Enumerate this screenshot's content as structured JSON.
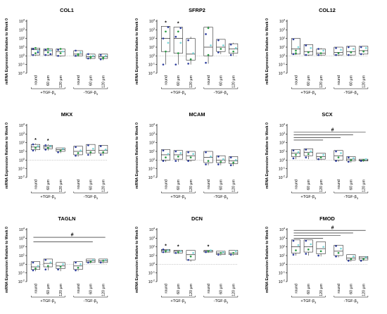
{
  "figure": {
    "ylabel": "mRNA Expression Relative to Week 0",
    "y_ticks": [
      {
        "base": "10",
        "exp": "4"
      },
      {
        "base": "10",
        "exp": "3"
      },
      {
        "base": "10",
        "exp": "2"
      },
      {
        "base": "10",
        "exp": "1"
      },
      {
        "base": "10",
        "exp": "0"
      },
      {
        "base": "10",
        "exp": "-1"
      },
      {
        "base": "10",
        "exp": "-2"
      }
    ],
    "categories": [
      "round",
      "60 μm",
      "120 μm",
      "round",
      "60 μm",
      "120 μm"
    ],
    "groups": [
      "+TGF-β",
      "-TGF-β"
    ],
    "group_subscript": "3",
    "colors": {
      "blue": "#2f3f9e",
      "green": "#2c9c46",
      "cyan": "#7dd7d9",
      "ref": "#999999"
    }
  },
  "chart_data": [
    {
      "type": "box",
      "title": "COL1",
      "ylim_log10": [
        -2,
        4
      ],
      "y_scale": "log",
      "series": [
        {
          "category": "round",
          "group": "+TGF-β3",
          "min": 0.0,
          "q1": 0.1,
          "median": 0.7,
          "q3": 0.9,
          "max": 0.9,
          "points": [
            0.1,
            0.3,
            0.6,
            0.8,
            0.9,
            0.4
          ]
        },
        {
          "category": "60 μm",
          "group": "+TGF-β3",
          "min": 0.0,
          "q1": 0.1,
          "median": 0.6,
          "q3": 0.8,
          "max": 0.8,
          "points": [
            0.1,
            0.4,
            0.6,
            0.7,
            0.8,
            0.2
          ]
        },
        {
          "category": "120 μm",
          "group": "+TGF-β3",
          "min": -0.1,
          "q1": 0.0,
          "median": 0.5,
          "q3": 0.8,
          "max": 0.8,
          "points": [
            0.0,
            0.3,
            0.5,
            0.7,
            0.8
          ]
        },
        {
          "category": "round",
          "group": "-TGF-β3",
          "min": -0.1,
          "q1": 0.0,
          "median": 0.2,
          "q3": 0.6,
          "max": 0.6,
          "points": [
            0.0,
            0.2,
            0.4,
            0.6,
            0.1
          ]
        },
        {
          "category": "60 μm",
          "group": "-TGF-β3",
          "min": -0.4,
          "q1": -0.3,
          "median": -0.1,
          "q3": 0.2,
          "max": 0.2,
          "points": [
            -0.3,
            -0.1,
            0.0,
            0.2,
            -0.2
          ]
        },
        {
          "category": "120 μm",
          "group": "-TGF-β3",
          "min": -0.5,
          "q1": -0.3,
          "median": -0.1,
          "q3": 0.2,
          "max": 0.2,
          "points": [
            -0.4,
            -0.2,
            0.0,
            0.1,
            -0.3
          ]
        }
      ],
      "annotations": []
    },
    {
      "type": "box",
      "title": "SFRP2",
      "ylim_log10": [
        -2,
        4
      ],
      "y_scale": "log",
      "series": [
        {
          "category": "round",
          "group": "+TGF-β3",
          "min": -1.0,
          "q1": 0.5,
          "median": 2.0,
          "q3": 3.4,
          "max": 3.4,
          "points": [
            -1.0,
            0.5,
            1.5,
            2.0,
            2.8,
            3.3
          ]
        },
        {
          "category": "60 μm",
          "group": "+TGF-β3",
          "min": -1.0,
          "q1": 0.3,
          "median": 2.0,
          "q3": 3.3,
          "max": 3.3,
          "points": [
            -1.0,
            0.3,
            1.5,
            2.2,
            2.8,
            3.2
          ]
        },
        {
          "category": "120 μm",
          "group": "+TGF-β3",
          "min": -1.0,
          "q1": -0.5,
          "median": 0.2,
          "q3": 2.0,
          "max": 2.2,
          "points": [
            -0.9,
            -0.4,
            0.3,
            1.8
          ]
        },
        {
          "category": "round",
          "group": "-TGF-β3",
          "min": -0.9,
          "q1": 0.0,
          "median": 1.0,
          "q3": 3.3,
          "max": 3.4,
          "points": [
            -0.8,
            0.1,
            1.2,
            2.5,
            3.2
          ]
        },
        {
          "category": "60 μm",
          "group": "-TGF-β3",
          "min": 0.2,
          "q1": 0.5,
          "median": 1.0,
          "q3": 1.9,
          "max": 1.9,
          "points": [
            0.4,
            0.8,
            1.2,
            1.8
          ]
        },
        {
          "category": "120 μm",
          "group": "-TGF-β3",
          "min": 0.0,
          "q1": 0.3,
          "median": 0.8,
          "q3": 1.4,
          "max": 1.5,
          "points": [
            0.1,
            0.5,
            0.9,
            1.3
          ]
        }
      ],
      "annotations": [
        {
          "type": "star",
          "text": "*",
          "category": "round"
        },
        {
          "type": "star",
          "text": "*",
          "category": "60 μm"
        }
      ]
    },
    {
      "type": "box",
      "title": "COL12",
      "ylim_log10": [
        -2,
        4
      ],
      "y_scale": "log",
      "series": [
        {
          "category": "round",
          "group": "+TGF-β3",
          "min": 0.1,
          "q1": 0.2,
          "median": 0.8,
          "q3": 2.0,
          "max": 2.0,
          "points": [
            0.2,
            0.6,
            1.0,
            1.9,
            0.3
          ]
        },
        {
          "category": "60 μm",
          "group": "+TGF-β3",
          "min": 0.0,
          "q1": 0.1,
          "median": 0.5,
          "q3": 1.3,
          "max": 1.3,
          "points": [
            0.1,
            0.4,
            0.9,
            1.2
          ]
        },
        {
          "category": "120 μm",
          "group": "+TGF-β3",
          "min": 0.0,
          "q1": 0.1,
          "median": 0.3,
          "q3": 0.8,
          "max": 0.9,
          "points": [
            0.1,
            0.3,
            0.6,
            0.8
          ]
        },
        {
          "category": "round",
          "group": "-TGF-β3",
          "min": 0.0,
          "q1": 0.1,
          "median": 0.4,
          "q3": 1.0,
          "max": 1.0,
          "points": [
            0.1,
            0.3,
            0.7,
            0.9
          ]
        },
        {
          "category": "60 μm",
          "group": "-TGF-β3",
          "min": 0.0,
          "q1": 0.1,
          "median": 0.5,
          "q3": 1.1,
          "max": 1.1,
          "points": [
            0.1,
            0.4,
            0.8,
            1.0
          ]
        },
        {
          "category": "120 μm",
          "group": "-TGF-β3",
          "min": 0.1,
          "q1": 0.2,
          "median": 0.6,
          "q3": 1.1,
          "max": 1.1,
          "points": [
            0.2,
            0.5,
            0.9,
            1.0
          ]
        }
      ],
      "annotations": []
    },
    {
      "type": "box",
      "title": "MKX",
      "ylim_log10": [
        -2,
        4
      ],
      "y_scale": "log",
      "series": [
        {
          "category": "round",
          "group": "+TGF-β3",
          "min": 1.0,
          "q1": 1.2,
          "median": 1.5,
          "q3": 1.8,
          "max": 1.9,
          "points": [
            1.1,
            1.4,
            1.6,
            1.8
          ]
        },
        {
          "category": "60 μm",
          "group": "+TGF-β3",
          "min": 1.1,
          "q1": 1.3,
          "median": 1.5,
          "q3": 1.7,
          "max": 1.8,
          "points": [
            1.2,
            1.4,
            1.6,
            1.7
          ]
        },
        {
          "category": "120 μm",
          "group": "+TGF-β3",
          "min": 0.8,
          "q1": 1.0,
          "median": 1.2,
          "q3": 1.4,
          "max": 1.4,
          "points": [
            0.9,
            1.1,
            1.3
          ]
        },
        {
          "category": "round",
          "group": "-TGF-β3",
          "min": 0.4,
          "q1": 0.6,
          "median": 1.0,
          "q3": 1.6,
          "max": 1.6,
          "points": [
            0.5,
            0.8,
            1.1,
            1.5
          ]
        },
        {
          "category": "60 μm",
          "group": "-TGF-β3",
          "min": 0.5,
          "q1": 0.8,
          "median": 1.1,
          "q3": 1.8,
          "max": 1.8,
          "points": [
            0.6,
            0.9,
            1.3,
            1.7
          ]
        },
        {
          "category": "120 μm",
          "group": "-TGF-β3",
          "min": 0.5,
          "q1": 0.8,
          "median": 1.1,
          "q3": 1.7,
          "max": 1.7,
          "points": [
            0.6,
            0.9,
            1.2,
            1.6
          ]
        }
      ],
      "annotations": [
        {
          "type": "star",
          "text": "*",
          "category": "round"
        },
        {
          "type": "star",
          "text": "*",
          "category": "60 μm"
        }
      ]
    },
    {
      "type": "box",
      "title": "MCAM",
      "ylim_log10": [
        -2,
        4
      ],
      "y_scale": "log",
      "series": [
        {
          "category": "round",
          "group": "+TGF-β3",
          "min": -0.2,
          "q1": 0.0,
          "median": 0.6,
          "q3": 1.2,
          "max": 1.2,
          "points": [
            -0.1,
            0.3,
            0.7,
            1.1
          ]
        },
        {
          "category": "60 μm",
          "group": "+TGF-β3",
          "min": -0.2,
          "q1": 0.1,
          "median": 0.6,
          "q3": 1.1,
          "max": 1.1,
          "points": [
            -0.1,
            0.4,
            0.8,
            1.0
          ]
        },
        {
          "category": "120 μm",
          "group": "+TGF-β3",
          "min": -0.2,
          "q1": 0.0,
          "median": 0.5,
          "q3": 1.0,
          "max": 1.0,
          "points": [
            -0.1,
            0.3,
            0.7,
            0.9
          ]
        },
        {
          "category": "round",
          "group": "-TGF-β3",
          "min": -0.6,
          "q1": -0.3,
          "median": 0.3,
          "q3": 1.0,
          "max": 1.0,
          "points": [
            -0.5,
            -0.1,
            0.4,
            0.9
          ]
        },
        {
          "category": "60 μm",
          "group": "-TGF-β3",
          "min": -0.6,
          "q1": -0.3,
          "median": 0.0,
          "q3": 0.5,
          "max": 0.5,
          "points": [
            -0.5,
            -0.2,
            0.1,
            0.4
          ]
        },
        {
          "category": "120 μm",
          "group": "-TGF-β3",
          "min": -0.7,
          "q1": -0.4,
          "median": -0.1,
          "q3": 0.4,
          "max": 0.4,
          "points": [
            -0.6,
            -0.3,
            0.0,
            0.3
          ]
        }
      ],
      "annotations": []
    },
    {
      "type": "box",
      "title": "SCX",
      "ylim_log10": [
        -2,
        4
      ],
      "y_scale": "log",
      "series": [
        {
          "category": "round",
          "group": "+TGF-β3",
          "min": 0.1,
          "q1": 0.4,
          "median": 0.8,
          "q3": 1.2,
          "max": 1.2,
          "points": [
            0.2,
            0.6,
            0.9,
            1.1
          ]
        },
        {
          "category": "60 μm",
          "group": "+TGF-β3",
          "min": 0.1,
          "q1": 0.5,
          "median": 0.9,
          "q3": 1.3,
          "max": 1.3,
          "points": [
            0.3,
            0.7,
            1.0,
            1.2
          ]
        },
        {
          "category": "120 μm",
          "group": "+TGF-β3",
          "min": 0.0,
          "q1": 0.1,
          "median": 0.4,
          "q3": 0.8,
          "max": 0.8,
          "points": [
            0.1,
            0.3,
            0.6
          ]
        },
        {
          "category": "round",
          "group": "-TGF-β3",
          "min": -0.2,
          "q1": 0.0,
          "median": 0.5,
          "q3": 1.1,
          "max": 1.1,
          "points": [
            -0.1,
            0.3,
            0.8,
            1.0
          ]
        },
        {
          "category": "60 μm",
          "group": "-TGF-β3",
          "min": -0.3,
          "q1": -0.1,
          "median": 0.1,
          "q3": 0.4,
          "max": 0.4,
          "points": [
            -0.2,
            0.0,
            0.2,
            0.3
          ]
        },
        {
          "category": "120 μm",
          "group": "-TGF-β3",
          "min": -0.2,
          "q1": -0.1,
          "median": 0.0,
          "q3": 0.1,
          "max": 0.1,
          "points": [
            -0.1,
            0.0,
            0.1
          ]
        }
      ],
      "annotations": [
        {
          "type": "bracket",
          "text": "#"
        }
      ]
    },
    {
      "type": "box",
      "title": "TAGLN",
      "ylim_log10": [
        -2,
        4
      ],
      "y_scale": "log",
      "series": [
        {
          "category": "round",
          "group": "+TGF-β3",
          "min": -0.8,
          "q1": -0.6,
          "median": -0.3,
          "q3": 0.3,
          "max": 0.3,
          "points": [
            -0.7,
            -0.5,
            -0.2,
            0.2
          ]
        },
        {
          "category": "60 μm",
          "group": "+TGF-β3",
          "min": -0.7,
          "q1": -0.3,
          "median": 0.1,
          "q3": 0.6,
          "max": 0.6,
          "points": [
            -0.6,
            -0.2,
            0.2,
            0.5
          ]
        },
        {
          "category": "120 μm",
          "group": "+TGF-β3",
          "min": -0.8,
          "q1": -0.5,
          "median": -0.2,
          "q3": 0.2,
          "max": 0.2,
          "points": [
            -0.6,
            -0.3,
            0.0
          ]
        },
        {
          "category": "round",
          "group": "-TGF-β3",
          "min": -0.8,
          "q1": -0.6,
          "median": -0.2,
          "q3": 0.3,
          "max": 0.3,
          "points": [
            -0.7,
            -0.4,
            0.0,
            0.2
          ]
        },
        {
          "category": "60 μm",
          "group": "-TGF-β3",
          "min": 0.1,
          "q1": 0.2,
          "median": 0.4,
          "q3": 0.6,
          "max": 0.6,
          "points": [
            0.2,
            0.3,
            0.5
          ]
        },
        {
          "category": "120 μm",
          "group": "-TGF-β3",
          "min": 0.1,
          "q1": 0.2,
          "median": 0.4,
          "q3": 0.6,
          "max": 0.6,
          "points": [
            0.2,
            0.4,
            0.5
          ]
        }
      ],
      "annotations": [
        {
          "type": "bracket",
          "text": "#"
        }
      ]
    },
    {
      "type": "box",
      "title": "DCN",
      "ylim_log10": [
        -2,
        4
      ],
      "y_scale": "log",
      "series": [
        {
          "category": "round",
          "group": "+TGF-β3",
          "min": 1.3,
          "q1": 1.4,
          "median": 1.6,
          "q3": 1.7,
          "max": 1.7,
          "points": [
            1.4,
            1.5,
            1.6,
            1.7
          ]
        },
        {
          "category": "60 μm",
          "group": "+TGF-β3",
          "min": 1.2,
          "q1": 1.3,
          "median": 1.5,
          "q3": 1.6,
          "max": 1.6,
          "points": [
            1.3,
            1.4,
            1.5
          ]
        },
        {
          "category": "120 μm",
          "group": "+TGF-β3",
          "min": 0.3,
          "q1": 0.5,
          "median": 1.1,
          "q3": 1.6,
          "max": 1.6,
          "points": [
            0.5,
            0.9,
            1.3
          ]
        },
        {
          "category": "round",
          "group": "-TGF-β3",
          "min": 1.3,
          "q1": 1.4,
          "median": 1.5,
          "q3": 1.6,
          "max": 1.6,
          "points": [
            1.4,
            1.5,
            1.6
          ]
        },
        {
          "category": "60 μm",
          "group": "-TGF-β3",
          "min": 1.0,
          "q1": 1.1,
          "median": 1.3,
          "q3": 1.5,
          "max": 1.5,
          "points": [
            1.1,
            1.3,
            1.4
          ]
        },
        {
          "category": "120 μm",
          "group": "-TGF-β3",
          "min": 1.0,
          "q1": 1.1,
          "median": 1.3,
          "q3": 1.6,
          "max": 1.6,
          "points": [
            1.1,
            1.3,
            1.5
          ]
        }
      ],
      "annotations": [
        {
          "type": "star",
          "text": "*",
          "category": "round"
        },
        {
          "type": "star",
          "text": "*",
          "category": "60 μm"
        },
        {
          "type": "star",
          "text": "*",
          "category": "round",
          "group": "-TGF-β3"
        }
      ]
    },
    {
      "type": "box",
      "title": "FMOD",
      "ylim_log10": [
        -2,
        4
      ],
      "y_scale": "log",
      "series": [
        {
          "category": "round",
          "group": "+TGF-β3",
          "min": 1.0,
          "q1": 1.3,
          "median": 2.0,
          "q3": 2.8,
          "max": 2.8,
          "points": [
            1.1,
            1.6,
            2.2,
            2.7
          ]
        },
        {
          "category": "60 μm",
          "group": "+TGF-β3",
          "min": 1.0,
          "q1": 1.4,
          "median": 2.0,
          "q3": 2.8,
          "max": 2.8,
          "points": [
            1.2,
            1.7,
            2.3,
            2.7
          ]
        },
        {
          "category": "120 μm",
          "group": "+TGF-β3",
          "min": 0.9,
          "q1": 1.2,
          "median": 1.8,
          "q3": 2.6,
          "max": 2.6,
          "points": [
            1.0,
            1.5,
            2.0
          ]
        },
        {
          "category": "round",
          "group": "-TGF-β3",
          "min": 0.8,
          "q1": 1.0,
          "median": 1.5,
          "q3": 2.2,
          "max": 2.2,
          "points": [
            0.9,
            1.3,
            1.8,
            2.1
          ]
        },
        {
          "category": "60 μm",
          "group": "-TGF-β3",
          "min": 0.3,
          "q1": 0.5,
          "median": 0.7,
          "q3": 1.1,
          "max": 1.1,
          "points": [
            0.4,
            0.6,
            0.9
          ]
        },
        {
          "category": "120 μm",
          "group": "-TGF-β3",
          "min": 0.4,
          "q1": 0.5,
          "median": 0.7,
          "q3": 0.9,
          "max": 0.9,
          "points": [
            0.4,
            0.6,
            0.8
          ]
        }
      ],
      "annotations": [
        {
          "type": "bracket",
          "text": "#"
        }
      ]
    }
  ]
}
